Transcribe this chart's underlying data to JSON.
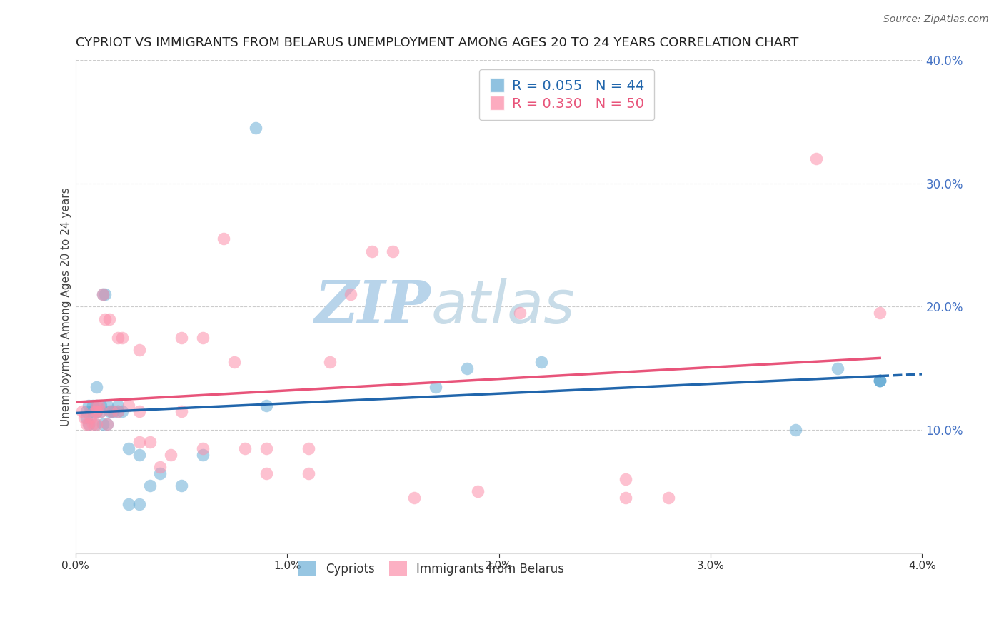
{
  "title": "CYPRIOT VS IMMIGRANTS FROM BELARUS UNEMPLOYMENT AMONG AGES 20 TO 24 YEARS CORRELATION CHART",
  "source": "Source: ZipAtlas.com",
  "ylabel": "Unemployment Among Ages 20 to 24 years",
  "legend_R": [
    "R = 0.055",
    "R = 0.330"
  ],
  "legend_N": [
    "N = 44",
    "N = 50"
  ],
  "blue_color": "#6baed6",
  "pink_color": "#fc8faa",
  "blue_line_color": "#2166ac",
  "pink_line_color": "#e8547a",
  "right_axis_color": "#4472c4",
  "xlim": [
    0.0,
    0.04
  ],
  "ylim": [
    0.0,
    0.4
  ],
  "xtick_vals": [
    0.0,
    0.01,
    0.02,
    0.03,
    0.04
  ],
  "ytick_vals": [
    0.1,
    0.2,
    0.3,
    0.4
  ],
  "blue_x": [
    0.0005,
    0.0005,
    0.0006,
    0.0006,
    0.0007,
    0.0008,
    0.0008,
    0.0009,
    0.001,
    0.001,
    0.001,
    0.001,
    0.0012,
    0.0012,
    0.0013,
    0.0013,
    0.0014,
    0.0015,
    0.0015,
    0.0016,
    0.0017,
    0.0018,
    0.002,
    0.002,
    0.0022,
    0.0025,
    0.0025,
    0.003,
    0.003,
    0.0035,
    0.004,
    0.005,
    0.006,
    0.0085,
    0.009,
    0.017,
    0.0185,
    0.022,
    0.034,
    0.036,
    0.038,
    0.038,
    0.038,
    0.038
  ],
  "blue_y": [
    0.115,
    0.11,
    0.12,
    0.105,
    0.115,
    0.115,
    0.12,
    0.105,
    0.115,
    0.12,
    0.135,
    0.115,
    0.12,
    0.115,
    0.105,
    0.21,
    0.21,
    0.12,
    0.105,
    0.115,
    0.115,
    0.115,
    0.12,
    0.115,
    0.115,
    0.085,
    0.04,
    0.08,
    0.04,
    0.055,
    0.065,
    0.055,
    0.08,
    0.345,
    0.12,
    0.135,
    0.15,
    0.155,
    0.1,
    0.15,
    0.14,
    0.14,
    0.14,
    0.14
  ],
  "pink_x": [
    0.0003,
    0.0004,
    0.0005,
    0.0006,
    0.0007,
    0.0008,
    0.0009,
    0.001,
    0.001,
    0.001,
    0.0011,
    0.0012,
    0.0013,
    0.0014,
    0.0015,
    0.0016,
    0.0017,
    0.002,
    0.002,
    0.0022,
    0.0025,
    0.003,
    0.003,
    0.003,
    0.0035,
    0.004,
    0.0045,
    0.005,
    0.005,
    0.006,
    0.006,
    0.007,
    0.0075,
    0.008,
    0.009,
    0.009,
    0.011,
    0.011,
    0.012,
    0.013,
    0.014,
    0.015,
    0.016,
    0.019,
    0.021,
    0.026,
    0.026,
    0.028,
    0.035,
    0.038
  ],
  "pink_y": [
    0.115,
    0.11,
    0.105,
    0.105,
    0.11,
    0.105,
    0.115,
    0.115,
    0.12,
    0.105,
    0.12,
    0.115,
    0.21,
    0.19,
    0.105,
    0.19,
    0.115,
    0.175,
    0.115,
    0.175,
    0.12,
    0.165,
    0.115,
    0.09,
    0.09,
    0.07,
    0.08,
    0.175,
    0.115,
    0.175,
    0.085,
    0.255,
    0.155,
    0.085,
    0.085,
    0.065,
    0.085,
    0.065,
    0.155,
    0.21,
    0.245,
    0.245,
    0.045,
    0.05,
    0.195,
    0.045,
    0.06,
    0.045,
    0.32,
    0.195
  ],
  "background_color": "#ffffff",
  "grid_color": "#cccccc",
  "title_fontsize": 13,
  "axis_label_fontsize": 11,
  "tick_fontsize": 11,
  "watermark_fontsize": 60
}
